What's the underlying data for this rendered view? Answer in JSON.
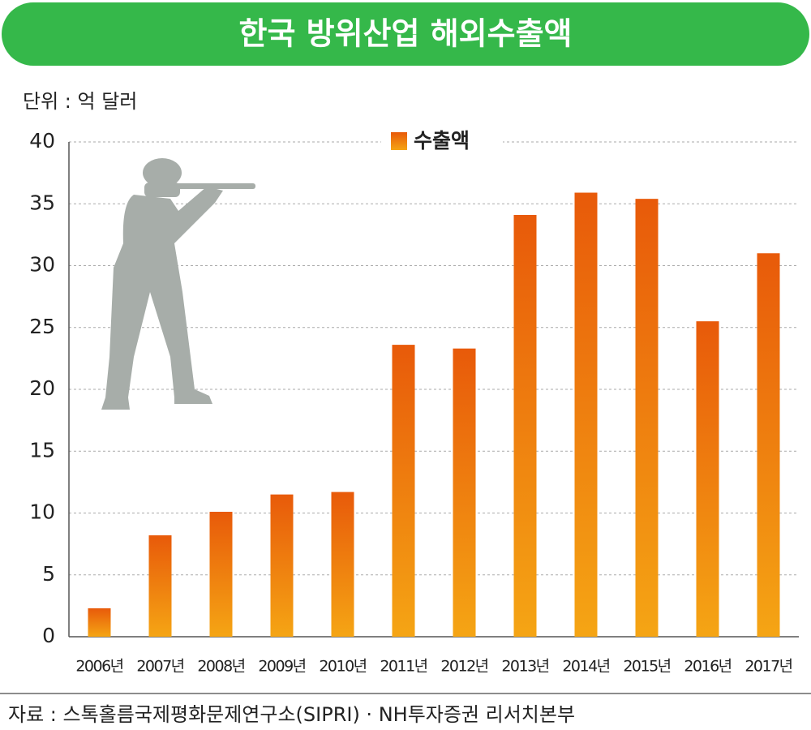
{
  "chart_data": {
    "type": "bar",
    "title": "한국 방위산업 해외수출액",
    "unit_label": "단위 : 억 달러",
    "source": "자료 : 스톡홀름국제평화문제연구소(SIPRI) · NH투자증권 리서치본부",
    "categories": [
      "2006년",
      "2007년",
      "2008년",
      "2009년",
      "2010년",
      "2011년",
      "2012년",
      "2013년",
      "2014년",
      "2015년",
      "2016년",
      "2017년"
    ],
    "series": [
      {
        "name": "수출액",
        "color": "#e85a0a",
        "values": [
          2.3,
          8.2,
          10.1,
          11.5,
          11.7,
          23.6,
          23.3,
          34.1,
          35.9,
          35.4,
          25.5,
          31.0
        ]
      }
    ],
    "ylim": [
      0,
      40
    ],
    "yticks": [
      0,
      5,
      10,
      15,
      20,
      25,
      30,
      35,
      40
    ],
    "grid": true,
    "legend": "top"
  }
}
